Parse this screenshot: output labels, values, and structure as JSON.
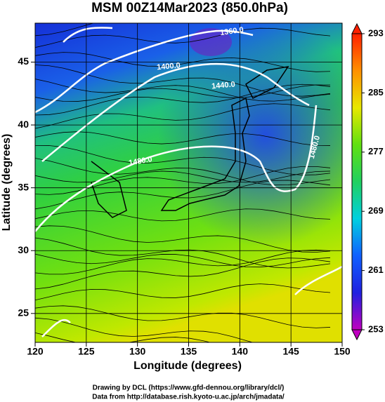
{
  "title": "MSM 00Z14Mar2023 (850.0hPa)",
  "x_axis": {
    "label": "Longitude (degrees)",
    "lim": [
      120,
      150
    ],
    "ticks": [
      120,
      125,
      130,
      135,
      140,
      145,
      150
    ]
  },
  "y_axis": {
    "label": "Latitude  (degrees)",
    "lim": [
      22.7,
      48.1
    ],
    "ticks": [
      25,
      30,
      35,
      40,
      45
    ]
  },
  "colorbar": {
    "lim": [
      253,
      293
    ],
    "ticks": [
      253,
      261,
      269,
      277,
      285,
      293
    ],
    "colors": [
      "#c000c0",
      "#2020e0",
      "#1060ff",
      "#00d0e0",
      "#20d060",
      "#60e010",
      "#e8e800",
      "#ff9000",
      "#ff2000"
    ]
  },
  "contour_labels": [
    "1360.0",
    "1400.0",
    "1440.0",
    "1480.0",
    "1480.0"
  ],
  "footer": [
    "Drawing by DCL (https://www.gfd-dennou.org/library/dcl/)",
    "Data from http://database.rish.kyoto-u.ac.jp/arch/jmadata/"
  ]
}
